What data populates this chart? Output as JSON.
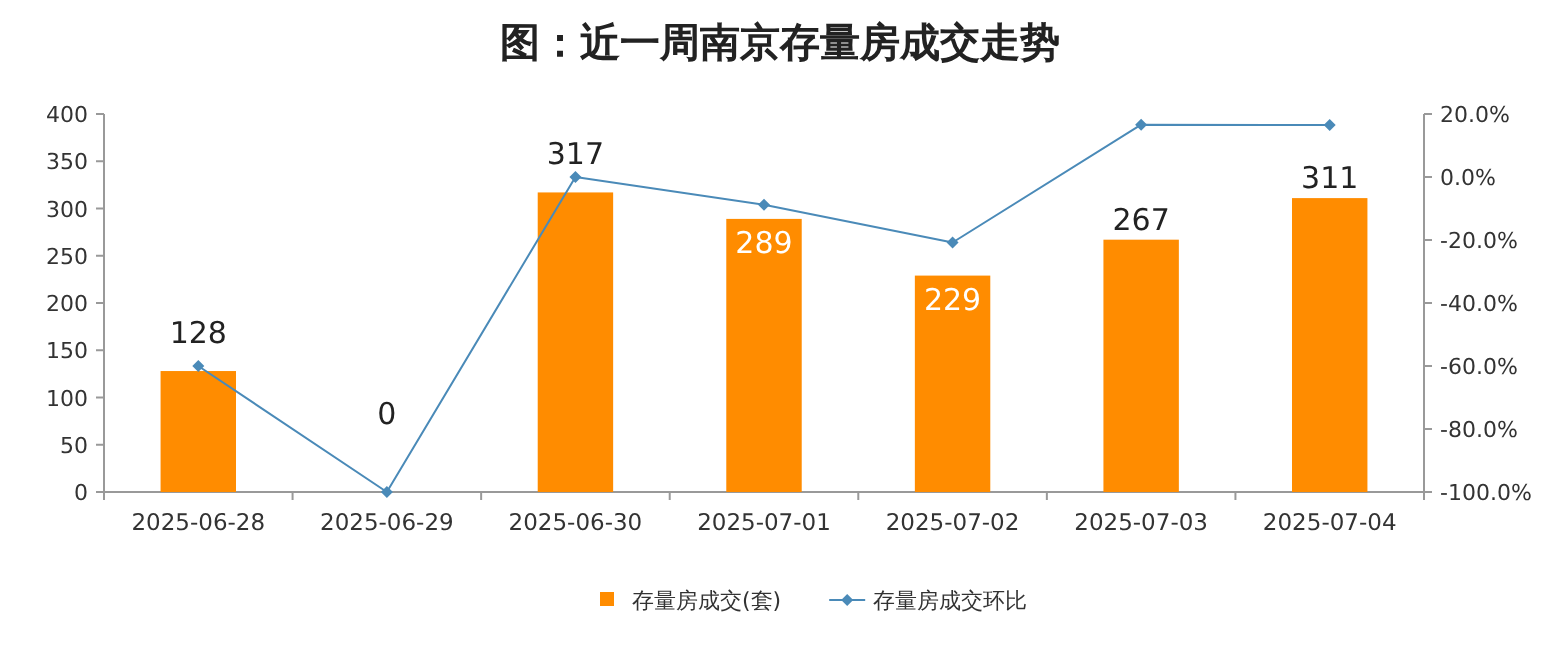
{
  "chart_data": {
    "type": "bar",
    "title": "图：近一周南京存量房成交走势",
    "categories": [
      "2025-06-28",
      "2025-06-29",
      "2025-06-30",
      "2025-07-01",
      "2025-07-02",
      "2025-07-03",
      "2025-07-04"
    ],
    "series": [
      {
        "name": "存量房成交(套)",
        "color": "#ff8c00",
        "values": [
          128,
          0,
          317,
          289,
          229,
          267,
          311
        ],
        "value_labels": [
          "128",
          "0",
          "317",
          "289",
          "229",
          "267",
          "311"
        ]
      },
      {
        "name": "存量房成交环比",
        "type": "line",
        "axis": "y2",
        "color": "#4a8ab8",
        "marker": "diamond",
        "values": [
          -60,
          -100,
          0,
          -8.8,
          -20.8,
          16.6,
          16.5
        ]
      }
    ],
    "ylim": [
      0,
      400
    ],
    "yticks": [
      0,
      50,
      100,
      150,
      200,
      250,
      300,
      350,
      400
    ],
    "y2lim": [
      -100,
      20
    ],
    "y2ticks": [
      {
        "value": 20,
        "label": "20.0%"
      },
      {
        "value": 0,
        "label": "0.0%"
      },
      {
        "value": -20,
        "label": "-20.0%"
      },
      {
        "value": -40,
        "label": "-40.0%"
      },
      {
        "value": -60,
        "label": "-60.0%"
      },
      {
        "value": -80,
        "label": "-80.0%"
      },
      {
        "value": -100,
        "label": "-100.0%"
      }
    ],
    "legend": "bottom",
    "grid": false
  }
}
